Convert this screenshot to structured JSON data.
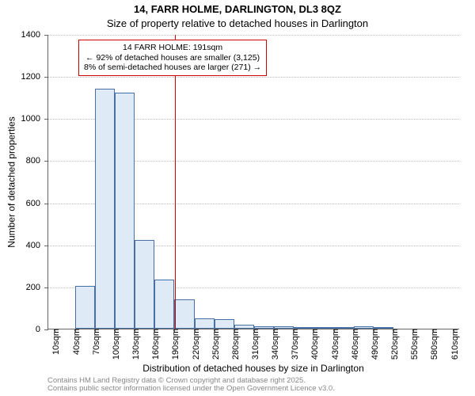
{
  "title": "14, FARR HOLME, DARLINGTON, DL3 8QZ",
  "subtitle": "Size of property relative to detached houses in Darlington",
  "ylabel": "Number of detached properties",
  "xlabel": "Distribution of detached houses by size in Darlington",
  "annotation": {
    "line1": "14 FARR HOLME: 191sqm",
    "line2": "← 92% of detached houses are smaller (3,125)",
    "line3": "8% of semi-detached houses are larger (271) →"
  },
  "footer": {
    "line1": "Contains HM Land Registry data © Crown copyright and database right 2025.",
    "line2": "Contains public sector information licensed under the Open Government Licence v3.0."
  },
  "chart": {
    "type": "histogram",
    "ylim": [
      0,
      1400
    ],
    "ytick_step": 200,
    "xlim": [
      0,
      620
    ],
    "xticks": [
      10,
      40,
      70,
      100,
      130,
      160,
      190,
      220,
      250,
      280,
      310,
      340,
      370,
      400,
      430,
      460,
      490,
      520,
      550,
      580,
      610
    ],
    "xtick_suffix": "sqm",
    "bar_fill": "#deebf7",
    "bar_stroke": "#4a6fa5",
    "marker_x": 191,
    "marker_color": "#d00000",
    "grid_color": "#bfbfbf",
    "background": "#ffffff",
    "bin_width": 30,
    "bars": [
      {
        "x0": 40,
        "x1": 70,
        "y": 205
      },
      {
        "x0": 70,
        "x1": 100,
        "y": 1140
      },
      {
        "x0": 100,
        "x1": 130,
        "y": 1120
      },
      {
        "x0": 130,
        "x1": 160,
        "y": 420
      },
      {
        "x0": 160,
        "x1": 190,
        "y": 235
      },
      {
        "x0": 190,
        "x1": 220,
        "y": 140
      },
      {
        "x0": 220,
        "x1": 250,
        "y": 50
      },
      {
        "x0": 250,
        "x1": 280,
        "y": 45
      },
      {
        "x0": 280,
        "x1": 310,
        "y": 20
      },
      {
        "x0": 310,
        "x1": 340,
        "y": 12
      },
      {
        "x0": 340,
        "x1": 370,
        "y": 10
      },
      {
        "x0": 370,
        "x1": 400,
        "y": 5
      },
      {
        "x0": 400,
        "x1": 430,
        "y": 3
      },
      {
        "x0": 430,
        "x1": 460,
        "y": 3
      },
      {
        "x0": 460,
        "x1": 490,
        "y": 10
      },
      {
        "x0": 490,
        "x1": 520,
        "y": 2
      }
    ],
    "title_fontsize": 13,
    "label_fontsize": 12,
    "tick_fontsize": 11,
    "annotation_fontsize": 10.5
  }
}
